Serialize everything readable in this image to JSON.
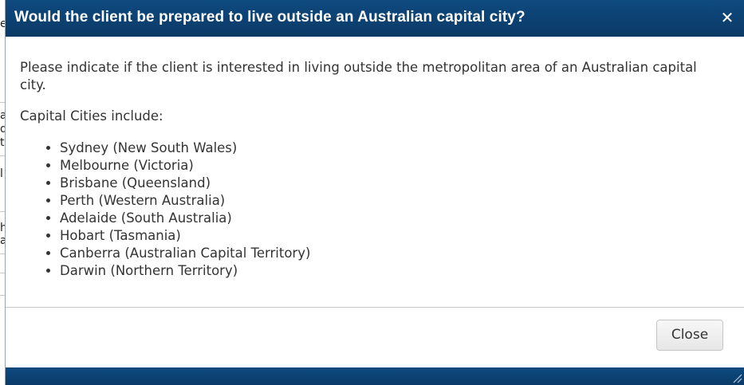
{
  "dialog": {
    "title": "Would the client be prepared to live outside an Australian capital city?",
    "close_icon": "close-icon",
    "intro": "Please indicate if the client is interested in living outside the metropolitan area of an Australian capital city.",
    "subhead": "Capital Cities include:",
    "cities": [
      "Sydney (New South Wales)",
      "Melbourne (Victoria)",
      "Brisbane (Queensland)",
      "Perth (Western Australia)",
      "Adelaide (South Australia)",
      "Hobart (Tasmania)",
      "Canberra (Australian Capital Territory)",
      "Darwin (Northern Territory)"
    ],
    "close_button_label": "Close"
  },
  "background": {
    "fragments": [
      "e",
      "a",
      "d",
      "t",
      "l",
      "h",
      "a"
    ]
  },
  "colors": {
    "header_bg": "#0a3a66",
    "text": "#333333",
    "button_bg": "#eeeeee"
  }
}
